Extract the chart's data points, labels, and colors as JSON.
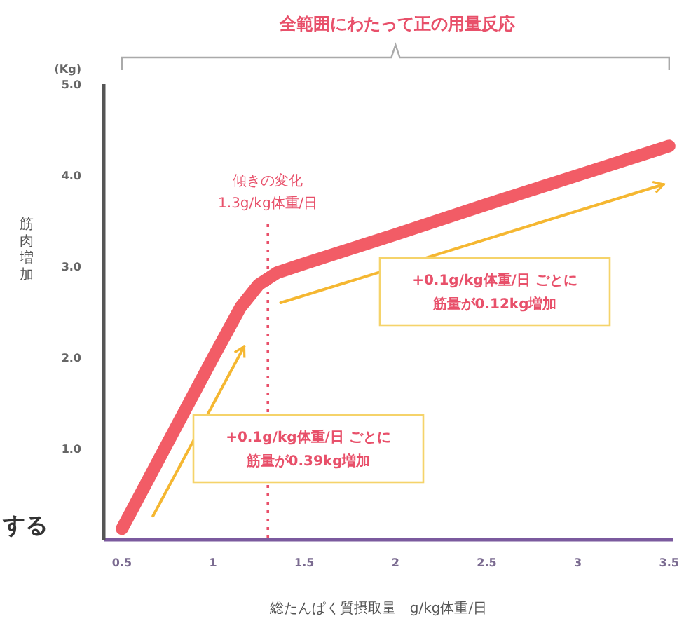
{
  "chart_data": {
    "type": "line",
    "title": "全範囲にわたって正の用量反応",
    "xlabel": "総たんぱく質摂取量　g/kg体重/日",
    "ylabel": "筋肉増加",
    "xlim": [
      0.4,
      3.52
    ],
    "xticks": [
      0.5,
      1,
      1.5,
      2,
      2.5,
      3,
      3.5
    ],
    "ylim": [
      0,
      5
    ],
    "yticks": [
      {
        "value": 1,
        "label": "1.0"
      },
      {
        "value": 2,
        "label": "2.0"
      },
      {
        "value": 3,
        "label": "3.0"
      },
      {
        "value": 4,
        "label": "4.0"
      },
      {
        "value": 5,
        "label": "5.0"
      }
    ],
    "series": [
      {
        "color": "#f25c66",
        "x": [
          0.5,
          1.0,
          1.15,
          1.25,
          1.35,
          1.5,
          2.0,
          2.5,
          3.0,
          3.5
        ],
        "values": [
          0.12,
          2.0,
          2.55,
          2.8,
          2.93,
          3.03,
          3.35,
          3.68,
          4.0,
          4.32
        ]
      },
      {
        "color": "#f5b731",
        "x": [
          0.67,
          1.17
        ],
        "values": [
          0.26,
          2.12
        ]
      },
      {
        "color": "#f5b731",
        "x": [
          1.37,
          3.47
        ],
        "values": [
          2.6,
          3.9
        ]
      }
    ],
    "ref_lines": [
      {
        "axis": "x",
        "value": 1.3,
        "label": "傾きの変化\n1.3g/kg体重/日",
        "color": "#e8506a",
        "line_style": "dotted"
      }
    ],
    "annotations": [
      "+0.1g/kg体重/日 ごとに",
      "筋量が0.39kg増加",
      "+0.1g/kg体重/日 ごとに",
      "筋量が0.12kg増加",
      "(Kg)",
      "する"
    ]
  }
}
